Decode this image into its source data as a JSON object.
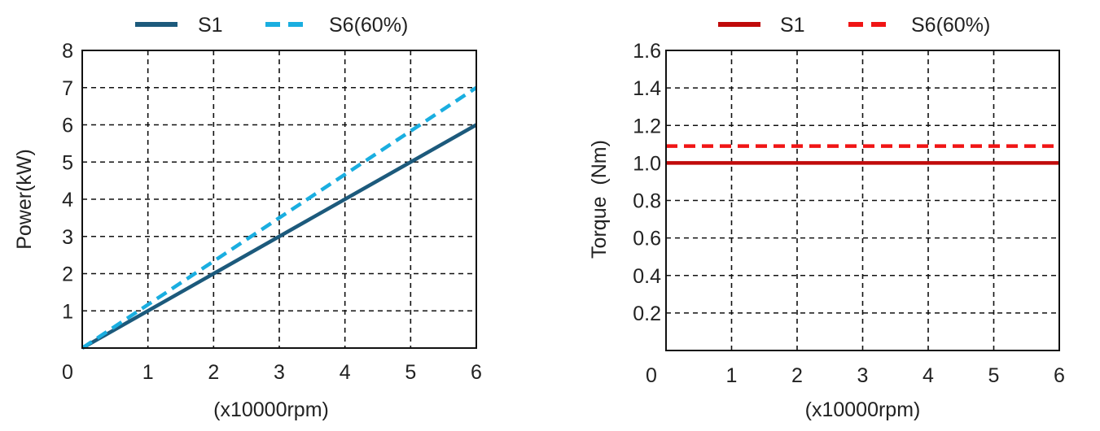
{
  "chart_data": [
    {
      "type": "line",
      "title": "",
      "xlabel": "(x10000rpm)",
      "ylabel": "Power(kW)",
      "xlim": [
        0,
        6
      ],
      "ylim": [
        0,
        8
      ],
      "x_ticks": [
        "0",
        "1",
        "2",
        "3",
        "4",
        "5",
        "6"
      ],
      "y_ticks": [
        "1",
        "2",
        "3",
        "4",
        "5",
        "6",
        "7",
        "8"
      ],
      "grid": true,
      "legend_position": "top-center",
      "series": [
        {
          "name": "S1",
          "color": "#1c5a7c",
          "style": "solid",
          "x": [
            0,
            6
          ],
          "y": [
            0,
            6
          ]
        },
        {
          "name": "S6(60%)",
          "color": "#1aaee0",
          "style": "dashed",
          "x": [
            0,
            6
          ],
          "y": [
            0,
            7
          ]
        }
      ]
    },
    {
      "type": "line",
      "title": "",
      "xlabel": "(x10000rpm)",
      "ylabel": "Torque  (Nm)",
      "xlim": [
        0,
        6
      ],
      "ylim": [
        0,
        1.6
      ],
      "x_ticks": [
        "0",
        "1",
        "2",
        "3",
        "4",
        "5",
        "6"
      ],
      "y_ticks": [
        "0.2",
        "0.4",
        "0.6",
        "0.8",
        "1.0",
        "1.2",
        "1.4",
        "1.6"
      ],
      "grid": true,
      "legend_position": "top-center",
      "series": [
        {
          "name": "S1",
          "color": "#c00a0a",
          "style": "solid",
          "x": [
            0,
            6
          ],
          "y": [
            1.0,
            1.0
          ]
        },
        {
          "name": "S6(60%)",
          "color": "#f01515",
          "style": "dashed",
          "x": [
            0,
            6
          ],
          "y": [
            1.09,
            1.09
          ]
        }
      ]
    }
  ]
}
